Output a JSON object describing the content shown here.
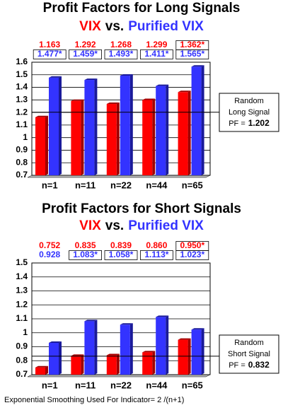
{
  "chart_data": [
    {
      "type": "bar",
      "title": "Profit Factors for Long Signals",
      "legend_separator": "vs.",
      "categories": [
        "n=1",
        "n=11",
        "n=22",
        "n=44",
        "n=65"
      ],
      "series": [
        {
          "name": "VIX",
          "color": "#ff0000",
          "values": [
            1.163,
            1.292,
            1.268,
            1.299,
            1.362
          ],
          "value_labels": [
            "1.163",
            "1.292",
            "1.268",
            "1.299",
            "1.362*"
          ]
        },
        {
          "name": "Purified VIX",
          "color": "#3333ff",
          "values": [
            1.477,
            1.459,
            1.493,
            1.411,
            1.565
          ],
          "value_labels": [
            "1.477*",
            "1.459*",
            "1.493*",
            "1.411*",
            "1.565*"
          ]
        }
      ],
      "ylim": [
        0.7,
        1.6
      ],
      "yticks": [
        0.7,
        0.8,
        0.9,
        1,
        1.1,
        1.2,
        1.3,
        1.4,
        1.5,
        1.6
      ],
      "grid": true,
      "reference_line": {
        "value": 1.202,
        "text_lines": [
          "Random",
          "Long Signal"
        ],
        "label_prefix": "PF ="
      }
    },
    {
      "type": "bar",
      "title": "Profit Factors for Short Signals",
      "legend_separator": "vs.",
      "categories": [
        "n=1",
        "n=11",
        "n=22",
        "n=44",
        "n=65"
      ],
      "series": [
        {
          "name": "VIX",
          "color": "#ff0000",
          "values": [
            0.752,
            0.835,
            0.839,
            0.86,
            0.95
          ],
          "value_labels": [
            "0.752",
            "0.835",
            "0.839",
            "0.860",
            "0.950*"
          ]
        },
        {
          "name": "Purified VIX",
          "color": "#3333ff",
          "values": [
            0.928,
            1.083,
            1.058,
            1.113,
            1.023
          ],
          "value_labels": [
            "0.928",
            "1.083*",
            "1.058*",
            "1.113*",
            "1.023*"
          ]
        }
      ],
      "ylim": [
        0.7,
        1.5
      ],
      "yticks": [
        0.7,
        0.8,
        0.9,
        1,
        1.1,
        1.2,
        1.3,
        1.4,
        1.5
      ],
      "grid": true,
      "reference_line": {
        "value": 0.832,
        "text_lines": [
          "Random",
          "Short Signal"
        ],
        "label_prefix": "PF ="
      }
    }
  ],
  "footnote": "Exponential Smoothing Used For Indicator= 2 /(n+1)"
}
